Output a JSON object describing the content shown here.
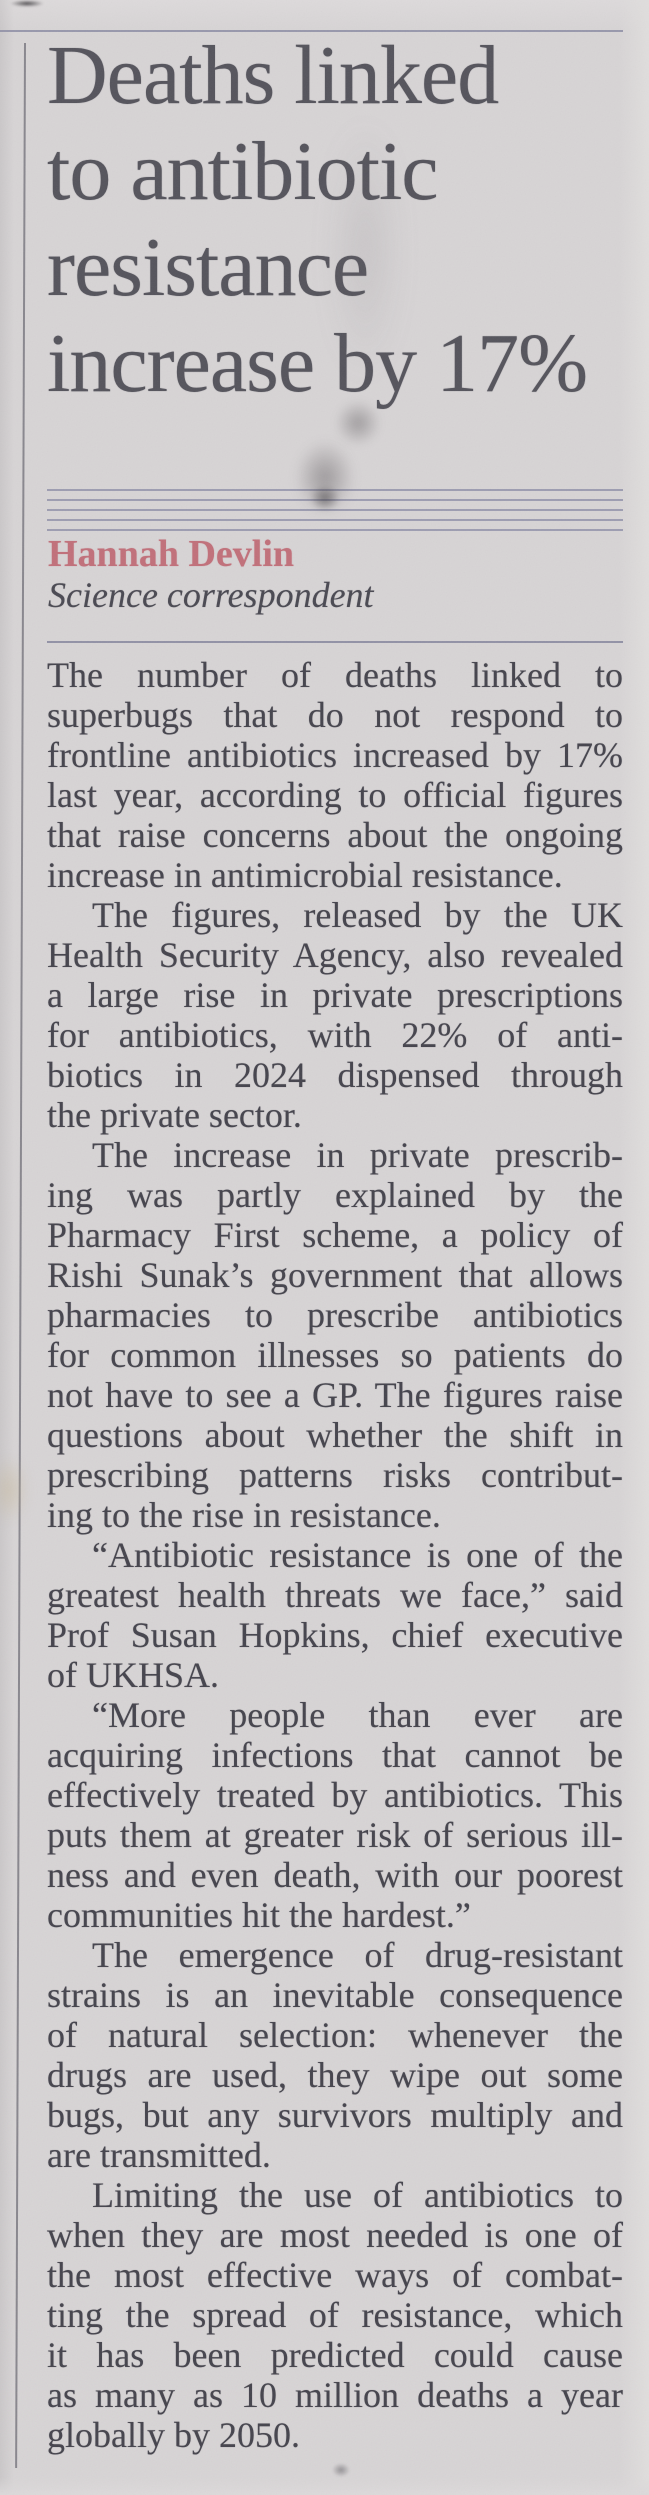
{
  "publication": {
    "style": "newspaper-clipping"
  },
  "colors": {
    "paper": "#d7d4d5",
    "headline_text": "#55545c",
    "body_text": "#45444d",
    "byline_accent": "#c1707a",
    "rule": "#8d8da4",
    "column_rule": "#6f6e76"
  },
  "article": {
    "headline": "Deaths linked to antibiotic resistance increase by 17%",
    "headline_lines": [
      "Deaths linked",
      "to antibiotic",
      "resistance",
      "increase by 17%"
    ],
    "byline": {
      "name": "Hannah Devlin",
      "role": "Science correspondent"
    },
    "paragraphs": [
      {
        "indent": false,
        "lines": [
          "The number of deaths linked to",
          "superbugs that do not respond to",
          "frontline antibiotics increased by 17%",
          "last year, according to official figures",
          "that raise concerns about the ongoing",
          "increase in antimicrobial resistance."
        ]
      },
      {
        "indent": true,
        "lines": [
          "The figures, released by the UK",
          "Health Security Agency, also revealed",
          "a large rise in private prescriptions",
          "for antibiotics, with 22% of anti-",
          "biotics in 2024 dispensed through",
          "the private sector."
        ]
      },
      {
        "indent": true,
        "lines": [
          "The increase in private prescrib-",
          "ing was partly explained by the",
          "Pharmacy First scheme, a policy of",
          "Rishi Sunak’s government that allows",
          "pharmacies to prescribe antibiotics",
          "for common illnesses so patients do",
          "not have to see a GP. The figures raise",
          "questions about whether the shift in",
          "prescribing patterns risks contribut-",
          "ing to the rise in resistance."
        ]
      },
      {
        "indent": true,
        "lines": [
          "“Antibiotic resistance is one of the",
          "greatest health threats we face,” said",
          "Prof Susan Hopkins, chief executive",
          "of UKHSA."
        ]
      },
      {
        "indent": true,
        "lines": [
          "“More people than ever are",
          "acquiring infections that cannot be",
          "effectively treated by antibiotics. This",
          "puts them at greater risk of serious ill-",
          "ness and even death, with our poorest",
          "communities hit the hardest.”"
        ]
      },
      {
        "indent": true,
        "lines": [
          "The emergence of drug-resistant",
          "strains is an inevitable consequence",
          "of natural selection: whenever the",
          "drugs are used, they wipe out some",
          "bugs, but any survivors multiply and",
          "are transmitted."
        ]
      },
      {
        "indent": true,
        "lines": [
          "Limiting the use of antibiotics to",
          "when they are most needed is one of",
          "the most effective ways of combat-",
          "ting the spread of resistance, which",
          "it has been predicted could cause",
          "as many as 10 million deaths a year",
          "globally by 2050."
        ]
      }
    ]
  }
}
